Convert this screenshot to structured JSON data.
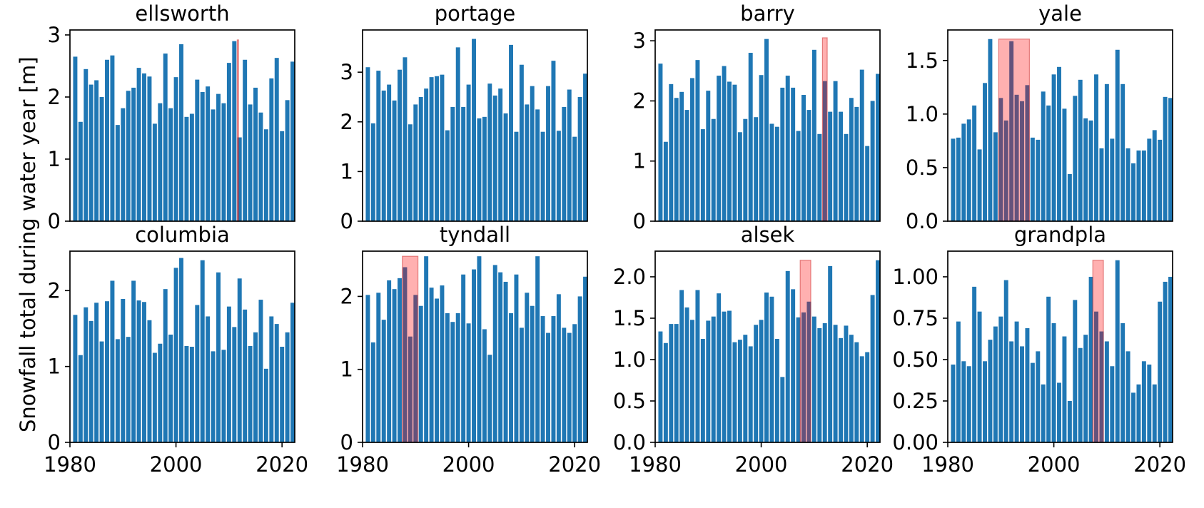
{
  "figure": {
    "ylabel": "Snowfall total during water year [m]",
    "background": "#ffffff",
    "bar_color": "#1f77b4",
    "span_color": "#ff0000",
    "span_alpha": 0.31,
    "span_edge_color": "rgba(205,50,50,0.55)",
    "axis_color": "#000000",
    "xlim": [
      1980,
      2022.4
    ],
    "xticks": [
      1980,
      2000,
      2020
    ],
    "xtick_labels": [
      "1980",
      "2000",
      "2020"
    ],
    "years_start": 1981,
    "grid": "off",
    "legend": "none"
  },
  "chart_data": [
    {
      "type": "bar",
      "title": "ellsworth",
      "row": 0,
      "col": 0,
      "ylim": [
        0,
        3.08
      ],
      "yticks": [
        0,
        1,
        2,
        3
      ],
      "ytick_labels": [
        "0",
        "1",
        "2",
        "3"
      ],
      "x_start": 1981,
      "values": [
        2.65,
        1.6,
        2.45,
        2.2,
        2.27,
        2.0,
        2.6,
        2.67,
        1.55,
        1.82,
        2.1,
        2.15,
        2.47,
        2.38,
        2.33,
        1.57,
        1.9,
        2.7,
        1.82,
        2.32,
        2.85,
        1.68,
        1.73,
        2.28,
        2.08,
        2.17,
        1.8,
        2.05,
        1.9,
        2.55,
        2.9,
        1.35,
        2.6,
        1.88,
        2.15,
        1.75,
        1.48,
        2.3,
        2.63,
        1.45,
        1.95,
        2.57
      ],
      "span": {
        "x0": 2011.55,
        "x1": 2011.8,
        "top": 2.92
      }
    },
    {
      "type": "bar",
      "title": "portage",
      "row": 0,
      "col": 1,
      "ylim": [
        0,
        3.85
      ],
      "yticks": [
        0,
        1,
        2,
        3
      ],
      "ytick_labels": [
        "0",
        "1",
        "2",
        "3"
      ],
      "x_start": 1981,
      "values": [
        3.1,
        1.97,
        3.03,
        2.63,
        2.75,
        2.43,
        3.05,
        3.3,
        1.95,
        2.35,
        2.5,
        2.67,
        2.9,
        2.92,
        2.95,
        1.83,
        2.3,
        3.5,
        2.3,
        2.75,
        3.67,
        2.07,
        2.1,
        2.77,
        2.53,
        2.67,
        2.17,
        3.55,
        1.8,
        3.15,
        2.35,
        2.72,
        2.25,
        1.8,
        2.72,
        3.23,
        1.82,
        2.3,
        2.65,
        1.7,
        2.5,
        2.97
      ],
      "span": null
    },
    {
      "type": "bar",
      "title": "barry",
      "row": 0,
      "col": 2,
      "ylim": [
        0,
        3.18
      ],
      "yticks": [
        0,
        1,
        2,
        3
      ],
      "ytick_labels": [
        "0",
        "1",
        "2",
        "3"
      ],
      "x_start": 1981,
      "values": [
        2.62,
        1.32,
        2.28,
        2.05,
        2.15,
        1.85,
        2.38,
        2.68,
        1.53,
        2.17,
        1.7,
        2.42,
        2.58,
        2.32,
        2.27,
        1.48,
        1.7,
        2.8,
        1.73,
        2.43,
        3.03,
        1.62,
        1.57,
        2.22,
        2.42,
        2.22,
        1.5,
        2.1,
        1.85,
        2.85,
        1.45,
        2.33,
        1.82,
        2.33,
        1.82,
        1.45,
        2.05,
        1.9,
        2.52,
        1.25,
        2.0,
        2.45
      ],
      "span": {
        "x0": 2011.55,
        "x1": 2012.45,
        "top": 3.05
      }
    },
    {
      "type": "bar",
      "title": "yale",
      "row": 0,
      "col": 3,
      "ylim": [
        0,
        1.785
      ],
      "yticks": [
        0,
        0.5,
        1.0,
        1.5
      ],
      "ytick_labels": [
        "0.0",
        "0.5",
        "1.0",
        "1.5"
      ],
      "x_start": 1981,
      "values": [
        0.77,
        0.78,
        0.91,
        0.95,
        1.08,
        0.67,
        1.29,
        1.7,
        0.83,
        1.15,
        0.94,
        1.68,
        1.18,
        1.12,
        1.27,
        0.78,
        0.76,
        1.21,
        1.08,
        1.37,
        1.44,
        1.05,
        0.44,
        1.17,
        1.32,
        0.96,
        0.94,
        1.37,
        0.68,
        1.28,
        0.77,
        1.6,
        1.28,
        0.68,
        0.54,
        0.66,
        0.66,
        0.77,
        0.85,
        0.76,
        1.16,
        1.15
      ],
      "span": {
        "x0": 1989.6,
        "x1": 1995.4,
        "top": 1.7
      }
    },
    {
      "type": "bar",
      "title": "columbia",
      "row": 1,
      "col": 0,
      "ylim": [
        0,
        2.52
      ],
      "yticks": [
        0,
        1,
        2
      ],
      "ytick_labels": [
        "0",
        "1",
        "2"
      ],
      "x_start": 1981,
      "values": [
        1.68,
        1.15,
        1.78,
        1.6,
        1.84,
        1.33,
        1.86,
        2.13,
        1.36,
        1.89,
        1.39,
        2.13,
        1.87,
        1.85,
        1.61,
        1.18,
        1.3,
        2.02,
        1.42,
        2.3,
        2.43,
        1.27,
        1.26,
        1.81,
        2.4,
        1.66,
        1.2,
        2.24,
        1.22,
        1.79,
        1.52,
        2.16,
        1.75,
        1.27,
        1.45,
        1.88,
        0.97,
        1.66,
        1.56,
        1.26,
        1.45,
        1.84
      ],
      "span": null
    },
    {
      "type": "bar",
      "title": "tyndall",
      "row": 1,
      "col": 1,
      "ylim": [
        0,
        2.62
      ],
      "yticks": [
        0,
        1,
        2
      ],
      "ytick_labels": [
        "0",
        "1",
        "2"
      ],
      "x_start": 1981,
      "values": [
        2.02,
        1.37,
        2.05,
        1.68,
        2.22,
        2.1,
        2.25,
        2.4,
        1.45,
        2.02,
        1.87,
        2.55,
        2.12,
        1.97,
        2.15,
        1.77,
        1.65,
        1.77,
        2.3,
        1.63,
        2.37,
        2.55,
        1.55,
        1.2,
        2.43,
        2.33,
        2.2,
        1.77,
        2.3,
        1.57,
        2.05,
        1.87,
        2.55,
        1.73,
        1.5,
        1.73,
        2.03,
        1.57,
        1.5,
        1.62,
        2.0,
        2.27
      ],
      "span": {
        "x0": 1987.5,
        "x1": 1990.45,
        "top": 2.55
      }
    },
    {
      "type": "bar",
      "title": "alsek",
      "row": 1,
      "col": 2,
      "ylim": [
        0,
        2.31
      ],
      "yticks": [
        0,
        0.5,
        1.0,
        1.5,
        2.0
      ],
      "ytick_labels": [
        "0.0",
        "0.5",
        "1.0",
        "1.5",
        "2.0"
      ],
      "x_start": 1981,
      "values": [
        1.34,
        1.2,
        1.43,
        1.43,
        1.84,
        1.63,
        1.48,
        1.84,
        1.25,
        1.47,
        1.52,
        1.8,
        1.58,
        1.59,
        1.21,
        1.24,
        1.3,
        1.16,
        1.42,
        1.48,
        1.81,
        1.76,
        1.25,
        0.79,
        2.07,
        1.85,
        1.51,
        1.57,
        1.7,
        1.52,
        1.38,
        1.44,
        2.13,
        1.42,
        1.26,
        1.41,
        1.3,
        1.21,
        1.04,
        1.09,
        1.78,
        2.2
      ],
      "span": {
        "x0": 2007.35,
        "x1": 2009.35,
        "top": 2.2
      }
    },
    {
      "type": "bar",
      "title": "grandpla",
      "row": 1,
      "col": 3,
      "ylim": [
        0,
        1.155
      ],
      "yticks": [
        0,
        0.25,
        0.5,
        0.75,
        1.0
      ],
      "ytick_labels": [
        "0.00",
        "0.25",
        "0.50",
        "0.75",
        "1.00"
      ],
      "x_start": 1981,
      "values": [
        0.47,
        0.73,
        0.49,
        0.46,
        0.94,
        0.79,
        0.49,
        0.62,
        0.7,
        0.76,
        0.98,
        0.61,
        0.73,
        0.58,
        0.69,
        0.48,
        0.55,
        0.35,
        0.88,
        0.72,
        0.36,
        0.64,
        0.25,
        0.86,
        0.57,
        0.65,
        1.0,
        0.79,
        0.67,
        0.61,
        0.46,
        1.1,
        0.72,
        0.55,
        0.3,
        0.35,
        0.49,
        0.47,
        0.35,
        0.85,
        0.97,
        1.0
      ],
      "span": {
        "x0": 2007.35,
        "x1": 2009.35,
        "top": 1.1
      }
    }
  ]
}
